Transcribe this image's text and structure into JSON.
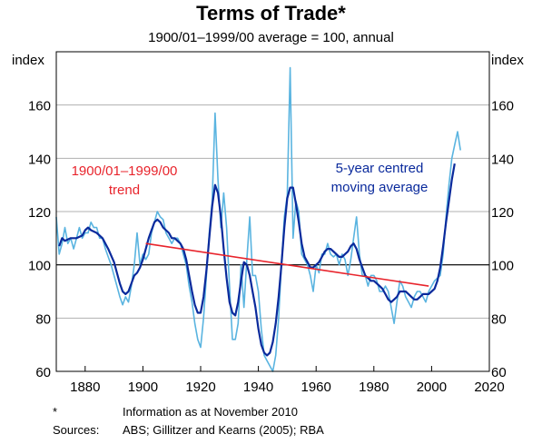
{
  "title": "Terms of Trade*",
  "subtitle": "1900/01–1999/00 average = 100, annual",
  "footnote_marker": "*",
  "footnote_text": "Information as at November 2010",
  "sources_label": "Sources:",
  "sources_text": "ABS; Gillitzer and Kearns (2005); RBA",
  "chart_data": {
    "type": "line",
    "ylabel_left": "index",
    "ylabel_right": "index",
    "xlim": [
      1870,
      2020
    ],
    "ylim": [
      60,
      180
    ],
    "x_ticks": [
      1880,
      1900,
      1920,
      1940,
      1960,
      1980,
      2000,
      2020
    ],
    "y_ticks": [
      60,
      80,
      100,
      120,
      140,
      160
    ],
    "grid": true,
    "reference_line": 100,
    "annotations": [
      {
        "text": "1900/01–1999/00\ntrend",
        "series": "trend",
        "color": "#e8242c"
      },
      {
        "text": "5-year centred\nmoving average",
        "series": "ma",
        "color": "#0a2a9c"
      }
    ],
    "series": [
      {
        "id": "annual",
        "color": "#5ab4e0",
        "points": [
          [
            1870,
            118
          ],
          [
            1871,
            104
          ],
          [
            1872,
            108
          ],
          [
            1873,
            114
          ],
          [
            1874,
            108
          ],
          [
            1875,
            110
          ],
          [
            1876,
            106
          ],
          [
            1877,
            110
          ],
          [
            1878,
            114
          ],
          [
            1879,
            110
          ],
          [
            1880,
            112
          ],
          [
            1881,
            112
          ],
          [
            1882,
            116
          ],
          [
            1883,
            114
          ],
          [
            1884,
            114
          ],
          [
            1885,
            110
          ],
          [
            1886,
            110
          ],
          [
            1887,
            106
          ],
          [
            1888,
            103
          ],
          [
            1889,
            100
          ],
          [
            1890,
            96
          ],
          [
            1891,
            92
          ],
          [
            1892,
            88
          ],
          [
            1893,
            85
          ],
          [
            1894,
            88
          ],
          [
            1895,
            86
          ],
          [
            1896,
            92
          ],
          [
            1897,
            100
          ],
          [
            1898,
            112
          ],
          [
            1899,
            100
          ],
          [
            1900,
            104
          ],
          [
            1901,
            102
          ],
          [
            1902,
            104
          ],
          [
            1903,
            112
          ],
          [
            1904,
            116
          ],
          [
            1905,
            120
          ],
          [
            1906,
            118
          ],
          [
            1907,
            117
          ],
          [
            1908,
            112
          ],
          [
            1909,
            110
          ],
          [
            1910,
            108
          ],
          [
            1911,
            110
          ],
          [
            1912,
            110
          ],
          [
            1913,
            108
          ],
          [
            1914,
            104
          ],
          [
            1915,
            100
          ],
          [
            1916,
            92
          ],
          [
            1917,
            86
          ],
          [
            1918,
            78
          ],
          [
            1919,
            72
          ],
          [
            1920,
            69
          ],
          [
            1921,
            80
          ],
          [
            1922,
            96
          ],
          [
            1923,
            112
          ],
          [
            1924,
            124
          ],
          [
            1925,
            157
          ],
          [
            1926,
            132
          ],
          [
            1927,
            114
          ],
          [
            1928,
            127
          ],
          [
            1929,
            114
          ],
          [
            1930,
            92
          ],
          [
            1931,
            72
          ],
          [
            1932,
            72
          ],
          [
            1933,
            78
          ],
          [
            1934,
            100
          ],
          [
            1935,
            84
          ],
          [
            1936,
            102
          ],
          [
            1937,
            118
          ],
          [
            1938,
            96
          ],
          [
            1939,
            96
          ],
          [
            1940,
            90
          ],
          [
            1941,
            76
          ],
          [
            1942,
            66
          ],
          [
            1943,
            64
          ],
          [
            1944,
            62
          ],
          [
            1945,
            60
          ],
          [
            1946,
            66
          ],
          [
            1947,
            80
          ],
          [
            1948,
            100
          ],
          [
            1949,
            118
          ],
          [
            1950,
            126
          ],
          [
            1951,
            174
          ],
          [
            1952,
            110
          ],
          [
            1953,
            124
          ],
          [
            1954,
            120
          ],
          [
            1955,
            104
          ],
          [
            1956,
            102
          ],
          [
            1957,
            100
          ],
          [
            1958,
            96
          ],
          [
            1959,
            90
          ],
          [
            1960,
            100
          ],
          [
            1961,
            97
          ],
          [
            1962,
            104
          ],
          [
            1963,
            104
          ],
          [
            1964,
            108
          ],
          [
            1965,
            104
          ],
          [
            1966,
            103
          ],
          [
            1967,
            104
          ],
          [
            1968,
            100
          ],
          [
            1969,
            104
          ],
          [
            1970,
            102
          ],
          [
            1971,
            96
          ],
          [
            1972,
            102
          ],
          [
            1973,
            110
          ],
          [
            1974,
            118
          ],
          [
            1975,
            104
          ],
          [
            1976,
            96
          ],
          [
            1977,
            96
          ],
          [
            1978,
            92
          ],
          [
            1979,
            96
          ],
          [
            1980,
            96
          ],
          [
            1981,
            94
          ],
          [
            1982,
            90
          ],
          [
            1983,
            90
          ],
          [
            1984,
            92
          ],
          [
            1985,
            90
          ],
          [
            1986,
            84
          ],
          [
            1987,
            78
          ],
          [
            1988,
            86
          ],
          [
            1989,
            94
          ],
          [
            1990,
            92
          ],
          [
            1991,
            88
          ],
          [
            1992,
            86
          ],
          [
            1993,
            84
          ],
          [
            1994,
            88
          ],
          [
            1995,
            90
          ],
          [
            1996,
            90
          ],
          [
            1997,
            88
          ],
          [
            1998,
            86
          ],
          [
            1999,
            90
          ],
          [
            2000,
            92
          ],
          [
            2001,
            94
          ],
          [
            2002,
            95
          ],
          [
            2003,
            96
          ],
          [
            2004,
            104
          ],
          [
            2005,
            118
          ],
          [
            2006,
            130
          ],
          [
            2007,
            140
          ],
          [
            2008,
            145
          ],
          [
            2009,
            150
          ],
          [
            2010,
            143
          ]
        ]
      },
      {
        "id": "ma",
        "color": "#0a2a9c",
        "points": [
          [
            1871,
            107
          ],
          [
            1872,
            110
          ],
          [
            1873,
            109
          ],
          [
            1875,
            110
          ],
          [
            1877,
            110
          ],
          [
            1879,
            111
          ],
          [
            1880,
            113
          ],
          [
            1881,
            114
          ],
          [
            1882,
            113
          ],
          [
            1884,
            112
          ],
          [
            1886,
            110
          ],
          [
            1888,
            106
          ],
          [
            1890,
            101
          ],
          [
            1891,
            97
          ],
          [
            1892,
            93
          ],
          [
            1893,
            90
          ],
          [
            1894,
            89
          ],
          [
            1895,
            90
          ],
          [
            1896,
            93
          ],
          [
            1897,
            96
          ],
          [
            1898,
            97
          ],
          [
            1899,
            99
          ],
          [
            1900,
            102
          ],
          [
            1901,
            106
          ],
          [
            1902,
            110
          ],
          [
            1903,
            113
          ],
          [
            1904,
            116
          ],
          [
            1905,
            117
          ],
          [
            1906,
            116
          ],
          [
            1907,
            114
          ],
          [
            1908,
            113
          ],
          [
            1909,
            112
          ],
          [
            1910,
            110
          ],
          [
            1911,
            110
          ],
          [
            1912,
            109
          ],
          [
            1913,
            108
          ],
          [
            1914,
            106
          ],
          [
            1915,
            102
          ],
          [
            1916,
            96
          ],
          [
            1917,
            90
          ],
          [
            1918,
            85
          ],
          [
            1919,
            82
          ],
          [
            1920,
            82
          ],
          [
            1921,
            88
          ],
          [
            1922,
            98
          ],
          [
            1923,
            110
          ],
          [
            1924,
            122
          ],
          [
            1925,
            130
          ],
          [
            1926,
            127
          ],
          [
            1927,
            118
          ],
          [
            1928,
            106
          ],
          [
            1929,
            95
          ],
          [
            1930,
            86
          ],
          [
            1931,
            82
          ],
          [
            1932,
            81
          ],
          [
            1933,
            86
          ],
          [
            1934,
            94
          ],
          [
            1935,
            101
          ],
          [
            1936,
            100
          ],
          [
            1937,
            96
          ],
          [
            1938,
            90
          ],
          [
            1939,
            84
          ],
          [
            1940,
            76
          ],
          [
            1941,
            70
          ],
          [
            1942,
            67
          ],
          [
            1943,
            66
          ],
          [
            1944,
            67
          ],
          [
            1945,
            71
          ],
          [
            1946,
            78
          ],
          [
            1947,
            88
          ],
          [
            1948,
            100
          ],
          [
            1949,
            114
          ],
          [
            1950,
            125
          ],
          [
            1951,
            129
          ],
          [
            1952,
            129
          ],
          [
            1953,
            123
          ],
          [
            1954,
            116
          ],
          [
            1955,
            108
          ],
          [
            1956,
            103
          ],
          [
            1957,
            101
          ],
          [
            1958,
            99
          ],
          [
            1959,
            99
          ],
          [
            1960,
            100
          ],
          [
            1961,
            101
          ],
          [
            1962,
            103
          ],
          [
            1963,
            105
          ],
          [
            1964,
            106
          ],
          [
            1965,
            106
          ],
          [
            1966,
            105
          ],
          [
            1967,
            104
          ],
          [
            1968,
            103
          ],
          [
            1969,
            103
          ],
          [
            1970,
            104
          ],
          [
            1971,
            105
          ],
          [
            1972,
            107
          ],
          [
            1973,
            108
          ],
          [
            1974,
            106
          ],
          [
            1975,
            102
          ],
          [
            1976,
            99
          ],
          [
            1977,
            96
          ],
          [
            1978,
            95
          ],
          [
            1979,
            94
          ],
          [
            1980,
            94
          ],
          [
            1981,
            93
          ],
          [
            1982,
            92
          ],
          [
            1983,
            91
          ],
          [
            1984,
            89
          ],
          [
            1985,
            87
          ],
          [
            1986,
            86
          ],
          [
            1987,
            87
          ],
          [
            1988,
            88
          ],
          [
            1989,
            90
          ],
          [
            1990,
            90
          ],
          [
            1991,
            90
          ],
          [
            1992,
            89
          ],
          [
            1993,
            88
          ],
          [
            1994,
            87
          ],
          [
            1995,
            87
          ],
          [
            1996,
            88
          ],
          [
            1997,
            89
          ],
          [
            1998,
            89
          ],
          [
            1999,
            89
          ],
          [
            2000,
            90
          ],
          [
            2001,
            91
          ],
          [
            2002,
            94
          ],
          [
            2003,
            99
          ],
          [
            2004,
            107
          ],
          [
            2005,
            116
          ],
          [
            2006,
            124
          ],
          [
            2007,
            132
          ],
          [
            2008,
            138
          ]
        ]
      },
      {
        "id": "trend",
        "color": "#e8242c",
        "points": [
          [
            1901,
            108
          ],
          [
            1999,
            92
          ]
        ]
      }
    ]
  }
}
